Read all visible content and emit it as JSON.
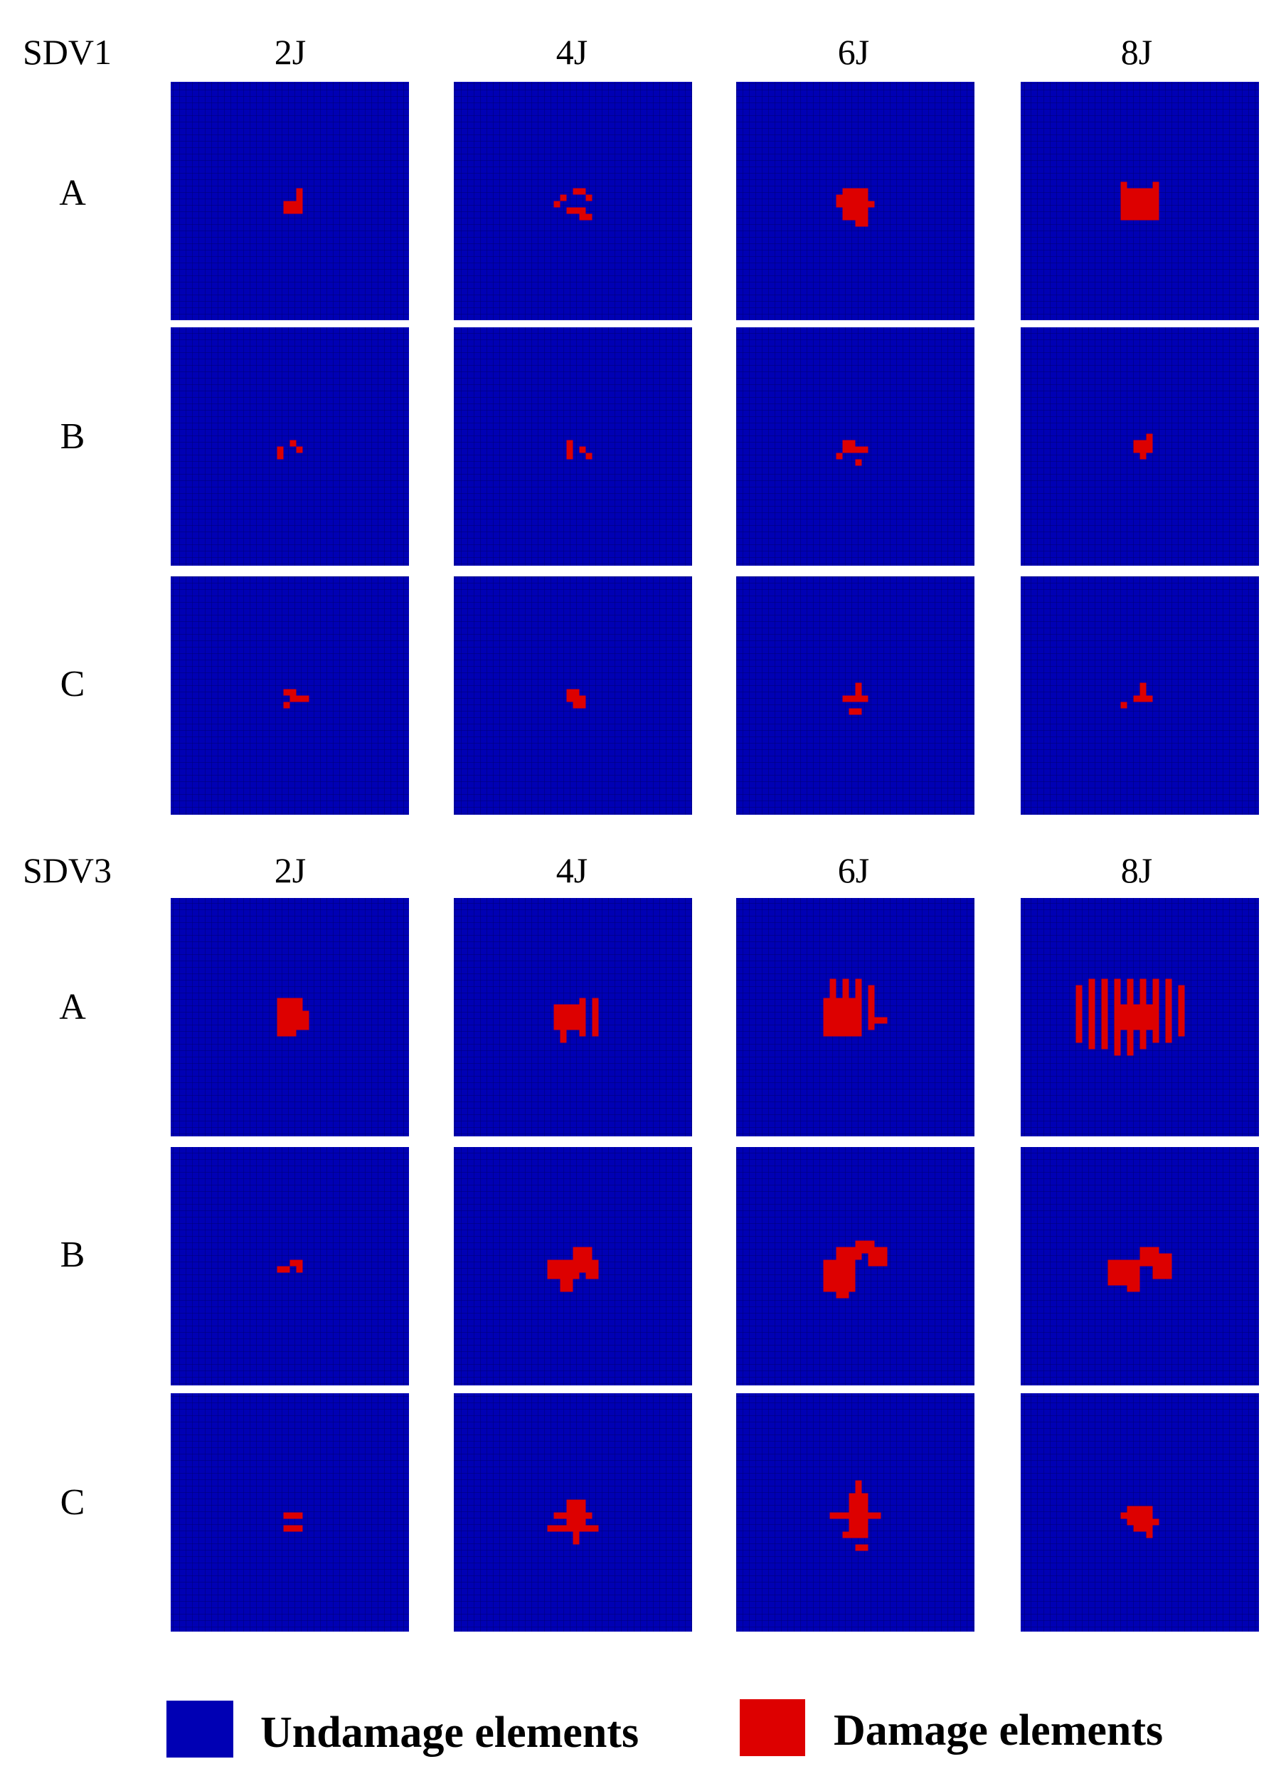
{
  "colors": {
    "undamaged": "#0000b4",
    "damaged": "#dd0000",
    "mesh_line": "#000070",
    "background": "#ffffff"
  },
  "sections": [
    {
      "label": "SDV1",
      "columns": [
        "2J",
        "4J",
        "6J",
        "8J"
      ],
      "rows": [
        "A",
        "B",
        "C"
      ]
    },
    {
      "label": "SDV3",
      "columns": [
        "2J",
        "4J",
        "6J",
        "8J"
      ],
      "rows": [
        "A",
        "B",
        "C"
      ]
    }
  ],
  "legend": {
    "undamaged_label": "Undamage elements",
    "damaged_label": "Damage elements"
  }
}
